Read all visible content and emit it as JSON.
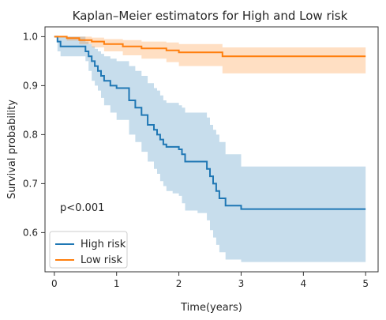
{
  "chart_data": {
    "type": "line",
    "title": "Kaplan–Meier estimators for High and Low risk",
    "xlabel": "Time(years)",
    "ylabel": "Survival probability",
    "xlim": [
      -0.15,
      5.2
    ],
    "ylim": [
      0.52,
      1.02
    ],
    "xticks": [
      0,
      1,
      2,
      3,
      4,
      5
    ],
    "xtick_labels": [
      "0",
      "1",
      "2",
      "3",
      "4",
      "5"
    ],
    "yticks": [
      0.6,
      0.7,
      0.8,
      0.9,
      1.0
    ],
    "ytick_labels": [
      "0.6",
      "0.7",
      "0.8",
      "0.9",
      "1.0"
    ],
    "annotation": "p<0.001",
    "legend": {
      "placement": "lower-left"
    },
    "grid": false,
    "series": [
      {
        "name": "High risk",
        "color": "#1f77b4",
        "band_color": "#1f77b4",
        "x": [
          0,
          0.05,
          0.1,
          0.5,
          0.55,
          0.6,
          0.65,
          0.7,
          0.75,
          0.8,
          0.9,
          1.0,
          1.2,
          1.3,
          1.4,
          1.5,
          1.6,
          1.65,
          1.7,
          1.75,
          1.8,
          1.9,
          2.0,
          2.05,
          2.1,
          2.3,
          2.45,
          2.5,
          2.55,
          2.6,
          2.65,
          2.75,
          3.0,
          5.0
        ],
        "y": [
          1.0,
          0.99,
          0.98,
          0.97,
          0.96,
          0.95,
          0.94,
          0.93,
          0.92,
          0.91,
          0.9,
          0.895,
          0.87,
          0.855,
          0.84,
          0.82,
          0.81,
          0.8,
          0.79,
          0.78,
          0.775,
          0.775,
          0.77,
          0.76,
          0.745,
          0.745,
          0.73,
          0.715,
          0.7,
          0.685,
          0.67,
          0.655,
          0.648,
          0.648
        ],
        "lower": [
          1.0,
          0.97,
          0.96,
          0.95,
          0.93,
          0.91,
          0.9,
          0.89,
          0.875,
          0.86,
          0.845,
          0.83,
          0.8,
          0.785,
          0.765,
          0.745,
          0.73,
          0.72,
          0.705,
          0.695,
          0.685,
          0.68,
          0.675,
          0.66,
          0.645,
          0.64,
          0.625,
          0.605,
          0.59,
          0.575,
          0.56,
          0.545,
          0.54,
          0.54
        ],
        "upper": [
          1.0,
          1.0,
          1.0,
          0.99,
          0.985,
          0.98,
          0.975,
          0.97,
          0.965,
          0.96,
          0.955,
          0.95,
          0.94,
          0.93,
          0.92,
          0.905,
          0.895,
          0.89,
          0.88,
          0.87,
          0.865,
          0.865,
          0.86,
          0.855,
          0.845,
          0.845,
          0.835,
          0.82,
          0.81,
          0.8,
          0.785,
          0.76,
          0.735,
          0.735
        ]
      },
      {
        "name": "Low risk",
        "color": "#ff7f0e",
        "band_color": "#ff7f0e",
        "x": [
          0,
          0.2,
          0.4,
          0.6,
          0.8,
          1.1,
          1.4,
          1.8,
          2.0,
          2.7,
          5.0
        ],
        "y": [
          1.0,
          0.997,
          0.993,
          0.99,
          0.985,
          0.98,
          0.976,
          0.972,
          0.968,
          0.96,
          0.96
        ],
        "lower": [
          1.0,
          0.992,
          0.985,
          0.978,
          0.97,
          0.962,
          0.955,
          0.948,
          0.94,
          0.925,
          0.925
        ],
        "upper": [
          1.0,
          1.0,
          1.0,
          0.998,
          0.995,
          0.993,
          0.99,
          0.988,
          0.985,
          0.978,
          0.978
        ]
      }
    ]
  }
}
